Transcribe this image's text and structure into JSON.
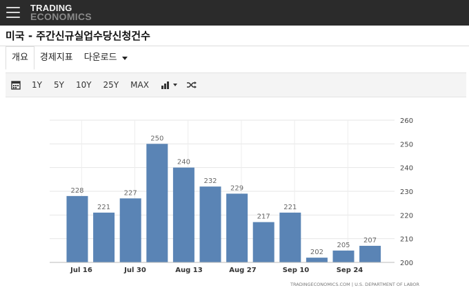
{
  "header": {
    "logo_line1": "TRADING",
    "logo_line2": "ECONOMICS"
  },
  "page": {
    "title": "미국 - 주간신규실업수당신청건수"
  },
  "tabs": [
    {
      "label": "개요",
      "active": true
    },
    {
      "label": "경제지표",
      "active": false
    },
    {
      "label": "다운로드",
      "active": false
    }
  ],
  "toolbar": {
    "calendar_icon": "calendar-icon",
    "ranges": [
      "1Y",
      "5Y",
      "10Y",
      "25Y",
      "MAX"
    ],
    "chart_type_icon": "bar-chart-icon",
    "shuffle_icon": "shuffle-icon"
  },
  "chart_data": {
    "type": "bar",
    "values": [
      228,
      221,
      227,
      250,
      240,
      232,
      229,
      217,
      221,
      202,
      205,
      207
    ],
    "x_tick_labels": [
      "Jul 16",
      "Jul 30",
      "Aug 13",
      "Aug 27",
      "Sep 10",
      "Sep 24"
    ],
    "ylim": [
      200,
      260
    ],
    "yticks": [
      200,
      210,
      220,
      230,
      240,
      250,
      260
    ],
    "bar_color": "#5a84b5",
    "grid": true,
    "y_axis_position": "right",
    "source": "TRADINGECONOMICS.COM  |  U.S. DEPARTMENT OF LABOR"
  }
}
